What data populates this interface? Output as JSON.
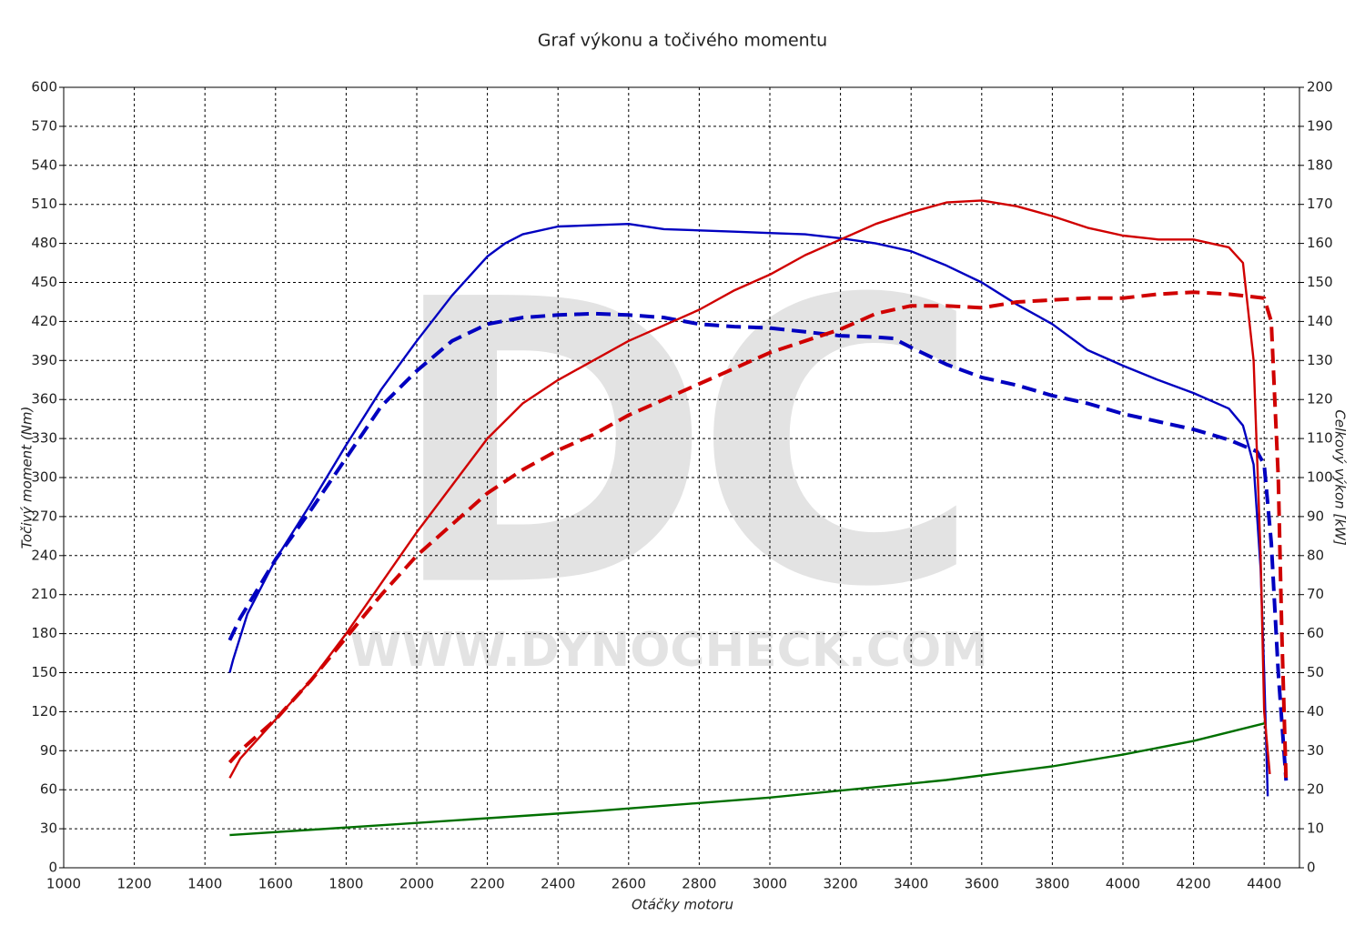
{
  "chart_data": {
    "type": "line",
    "title": "Graf výkonu a točivého momentu",
    "xlabel": "Otáčky motoru",
    "ylabel": "Točivý moment (Nm)",
    "y2label": "Celkový výkon [kW]",
    "watermark": {
      "logo": "DC",
      "url": "WWW.DYNOCHECK.COM"
    },
    "grid": true,
    "xlim": [
      1000,
      4500
    ],
    "xticks": [
      1000,
      1200,
      1400,
      1600,
      1800,
      2000,
      2200,
      2400,
      2600,
      2800,
      3000,
      3200,
      3400,
      3600,
      3800,
      4000,
      4200,
      4400
    ],
    "ylim": [
      0,
      600
    ],
    "yticks": [
      0,
      30,
      60,
      90,
      120,
      150,
      180,
      210,
      240,
      270,
      300,
      330,
      360,
      390,
      420,
      450,
      480,
      510,
      540,
      570,
      600
    ],
    "y2lim": [
      0,
      200
    ],
    "y2ticks": [
      0,
      10,
      20,
      30,
      40,
      50,
      60,
      70,
      80,
      90,
      100,
      110,
      120,
      130,
      140,
      150,
      160,
      170,
      180,
      190,
      200
    ],
    "series": [
      {
        "color": "#0000c0",
        "dashed": false,
        "x": [
          1470,
          1480,
          1520,
          1600,
          1700,
          1800,
          1900,
          2000,
          2100,
          2200,
          2250,
          2300,
          2400,
          2500,
          2600,
          2700,
          2800,
          2900,
          3000,
          3100,
          3200,
          3300,
          3400,
          3500,
          3600,
          3700,
          3800,
          3900,
          4000,
          4100,
          4200,
          4300,
          4340,
          4370,
          4390,
          4400,
          4410
        ],
        "values": [
          150,
          160,
          195,
          237,
          280,
          325,
          368,
          405,
          440,
          470,
          480,
          487,
          493,
          494,
          495,
          491,
          490,
          489,
          488,
          487,
          484,
          480,
          474,
          463,
          450,
          433,
          418,
          398,
          386,
          375,
          365,
          353,
          340,
          310,
          230,
          150,
          55
        ]
      },
      {
        "color": "#0000c0",
        "dashed": true,
        "x": [
          1470,
          1500,
          1600,
          1700,
          1800,
          1900,
          2000,
          2100,
          2200,
          2300,
          2400,
          2500,
          2600,
          2700,
          2800,
          2900,
          3000,
          3100,
          3200,
          3300,
          3350,
          3400,
          3500,
          3600,
          3700,
          3800,
          3900,
          4000,
          4100,
          4200,
          4300,
          4380,
          4400,
          4420,
          4440,
          4462
        ],
        "values": [
          175,
          192,
          237,
          275,
          315,
          355,
          382,
          405,
          418,
          423,
          425,
          426,
          425,
          423,
          418,
          416,
          415,
          412,
          409,
          408,
          407,
          400,
          387,
          377,
          371,
          363,
          357,
          349,
          343,
          337,
          329,
          320,
          310,
          250,
          150,
          67
        ]
      },
      {
        "color": "#d00000",
        "dashed": false,
        "axis": "y2",
        "x": [
          1470,
          1500,
          1600,
          1700,
          1800,
          1900,
          2000,
          2100,
          2200,
          2300,
          2400,
          2500,
          2600,
          2700,
          2800,
          2900,
          3000,
          3100,
          3200,
          3300,
          3400,
          3500,
          3600,
          3700,
          3800,
          3900,
          4000,
          4100,
          4200,
          4300,
          4340,
          4370,
          4390,
          4400,
          4416
        ],
        "values": [
          23,
          28,
          38,
          48,
          60,
          73,
          86,
          98,
          110,
          119,
          125,
          130,
          135,
          139,
          143,
          148,
          152,
          157,
          161,
          165,
          168,
          170.5,
          171,
          169.5,
          167,
          164,
          162,
          161,
          161,
          159,
          155,
          130,
          80,
          40,
          24
        ]
      },
      {
        "color": "#d00000",
        "dashed": true,
        "axis": "y2",
        "x": [
          1470,
          1500,
          1600,
          1700,
          1800,
          1900,
          2000,
          2100,
          2200,
          2300,
          2400,
          2500,
          2600,
          2700,
          2800,
          2900,
          3000,
          3100,
          3200,
          3300,
          3400,
          3500,
          3600,
          3700,
          3800,
          3900,
          4000,
          4100,
          4200,
          4300,
          4400,
          4420,
          4440,
          4450,
          4462
        ],
        "values": [
          27,
          30,
          38,
          48,
          59,
          70,
          80,
          88,
          96,
          102,
          107,
          111,
          116,
          120,
          124,
          128,
          132,
          135,
          138,
          142,
          144,
          144,
          143.5,
          145,
          145.5,
          146,
          146,
          147,
          147.5,
          147,
          146,
          140,
          100,
          60,
          22
        ]
      },
      {
        "color": "#007000",
        "dashed": false,
        "axis": "y2",
        "x": [
          1470,
          2000,
          2500,
          3000,
          3500,
          3800,
          4000,
          4200,
          4400
        ],
        "values": [
          8.4,
          11.5,
          14.5,
          18,
          22.5,
          26,
          29,
          32.5,
          37
        ]
      }
    ]
  }
}
